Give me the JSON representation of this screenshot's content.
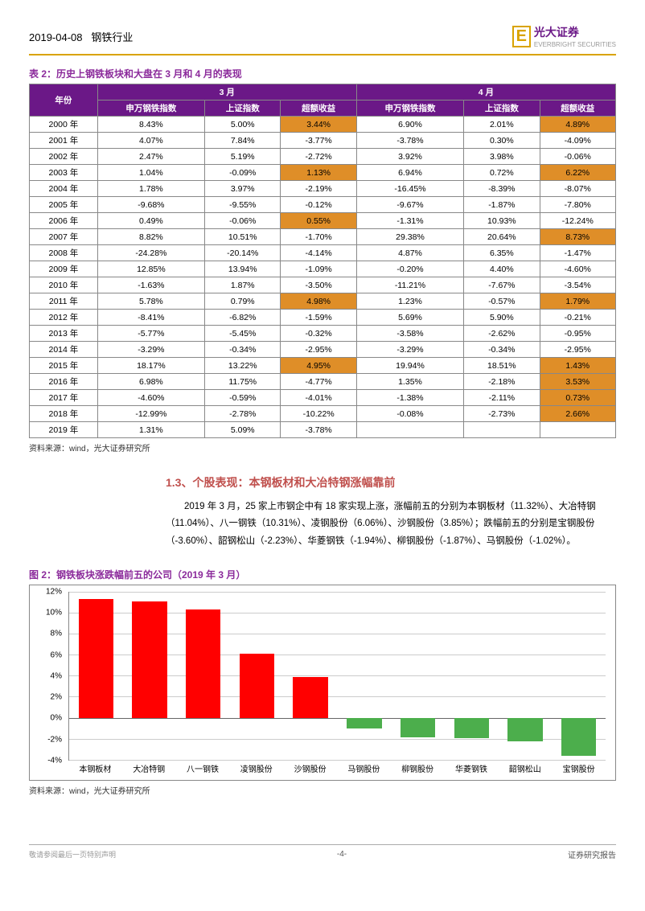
{
  "header": {
    "date": "2019-04-08",
    "industry": "钢铁行业",
    "brand_cn": "光大证券",
    "brand_en": "EVERBRIGHT SECURITIES"
  },
  "table": {
    "caption": "表 2：历史上钢铁板块和大盘在 3 月和 4 月的表现",
    "year_header": "年份",
    "month_a": "3 月",
    "month_b": "4 月",
    "sub_headers": [
      "申万钢铁指数",
      "上证指数",
      "超额收益",
      "申万钢铁指数",
      "上证指数",
      "超额收益"
    ],
    "rows": [
      {
        "y": "2000 年",
        "c": [
          "8.43%",
          "5.00%",
          "3.44%",
          "6.90%",
          "2.01%",
          "4.89%"
        ],
        "hl": [
          2,
          5
        ]
      },
      {
        "y": "2001 年",
        "c": [
          "4.07%",
          "7.84%",
          "-3.77%",
          "-3.78%",
          "0.30%",
          "-4.09%"
        ],
        "hl": []
      },
      {
        "y": "2002 年",
        "c": [
          "2.47%",
          "5.19%",
          "-2.72%",
          "3.92%",
          "3.98%",
          "-0.06%"
        ],
        "hl": []
      },
      {
        "y": "2003 年",
        "c": [
          "1.04%",
          "-0.09%",
          "1.13%",
          "6.94%",
          "0.72%",
          "6.22%"
        ],
        "hl": [
          2,
          5
        ]
      },
      {
        "y": "2004 年",
        "c": [
          "1.78%",
          "3.97%",
          "-2.19%",
          "-16.45%",
          "-8.39%",
          "-8.07%"
        ],
        "hl": []
      },
      {
        "y": "2005 年",
        "c": [
          "-9.68%",
          "-9.55%",
          "-0.12%",
          "-9.67%",
          "-1.87%",
          "-7.80%"
        ],
        "hl": []
      },
      {
        "y": "2006 年",
        "c": [
          "0.49%",
          "-0.06%",
          "0.55%",
          "-1.31%",
          "10.93%",
          "-12.24%"
        ],
        "hl": [
          2
        ]
      },
      {
        "y": "2007 年",
        "c": [
          "8.82%",
          "10.51%",
          "-1.70%",
          "29.38%",
          "20.64%",
          "8.73%"
        ],
        "hl": [
          5
        ]
      },
      {
        "y": "2008 年",
        "c": [
          "-24.28%",
          "-20.14%",
          "-4.14%",
          "4.87%",
          "6.35%",
          "-1.47%"
        ],
        "hl": []
      },
      {
        "y": "2009 年",
        "c": [
          "12.85%",
          "13.94%",
          "-1.09%",
          "-0.20%",
          "4.40%",
          "-4.60%"
        ],
        "hl": []
      },
      {
        "y": "2010 年",
        "c": [
          "-1.63%",
          "1.87%",
          "-3.50%",
          "-11.21%",
          "-7.67%",
          "-3.54%"
        ],
        "hl": []
      },
      {
        "y": "2011 年",
        "c": [
          "5.78%",
          "0.79%",
          "4.98%",
          "1.23%",
          "-0.57%",
          "1.79%"
        ],
        "hl": [
          2,
          5
        ]
      },
      {
        "y": "2012 年",
        "c": [
          "-8.41%",
          "-6.82%",
          "-1.59%",
          "5.69%",
          "5.90%",
          "-0.21%"
        ],
        "hl": []
      },
      {
        "y": "2013 年",
        "c": [
          "-5.77%",
          "-5.45%",
          "-0.32%",
          "-3.58%",
          "-2.62%",
          "-0.95%"
        ],
        "hl": []
      },
      {
        "y": "2014 年",
        "c": [
          "-3.29%",
          "-0.34%",
          "-2.95%",
          "-3.29%",
          "-0.34%",
          "-2.95%"
        ],
        "hl": []
      },
      {
        "y": "2015 年",
        "c": [
          "18.17%",
          "13.22%",
          "4.95%",
          "19.94%",
          "18.51%",
          "1.43%"
        ],
        "hl": [
          2,
          5
        ]
      },
      {
        "y": "2016 年",
        "c": [
          "6.98%",
          "11.75%",
          "-4.77%",
          "1.35%",
          "-2.18%",
          "3.53%"
        ],
        "hl": [
          5
        ]
      },
      {
        "y": "2017 年",
        "c": [
          "-4.60%",
          "-0.59%",
          "-4.01%",
          "-1.38%",
          "-2.11%",
          "0.73%"
        ],
        "hl": [
          5
        ]
      },
      {
        "y": "2018 年",
        "c": [
          "-12.99%",
          "-2.78%",
          "-10.22%",
          "-0.08%",
          "-2.73%",
          "2.66%"
        ],
        "hl": [
          5
        ]
      },
      {
        "y": "2019 年",
        "c": [
          "1.31%",
          "5.09%",
          "-3.78%",
          "",
          "",
          ""
        ],
        "hl": []
      }
    ],
    "source": "资料来源：wind，光大证券研究所"
  },
  "section": {
    "title": "1.3、个股表现：本钢板材和大冶特钢涨幅靠前",
    "body": "2019 年 3 月，25 家上市钢企中有 18 家实现上涨，涨幅前五的分别为本钢板材（11.32%）、大冶特钢（11.04%）、八一钢铁（10.31%）、凌钢股份（6.06%）、沙钢股份（3.85%）；跌幅前五的分别是宝钢股份（-3.60%）、韶钢松山（-2.23%）、华菱钢铁（-1.94%）、柳钢股份（-1.87%）、马钢股份（-1.02%）。"
  },
  "chart": {
    "caption": "图 2：钢铁板块涨跌幅前五的公司（2019 年 3 月）",
    "ylim_min": -4,
    "ylim_max": 12,
    "ystep": 2,
    "pos_color": "#ff0000",
    "neg_color": "#4cae4c",
    "grid_color": "#cccccc",
    "bars": [
      {
        "name": "本钢板材",
        "v": 11.32
      },
      {
        "name": "大冶特钢",
        "v": 11.04
      },
      {
        "name": "八一钢铁",
        "v": 10.31
      },
      {
        "name": "凌钢股份",
        "v": 6.06
      },
      {
        "name": "沙钢股份",
        "v": 3.85
      },
      {
        "name": "马钢股份",
        "v": -1.02
      },
      {
        "name": "柳钢股份",
        "v": -1.87
      },
      {
        "name": "华菱钢铁",
        "v": -1.94
      },
      {
        "name": "韶钢松山",
        "v": -2.23
      },
      {
        "name": "宝钢股份",
        "v": -3.6
      }
    ],
    "source": "资料来源：wind，光大证券研究所"
  },
  "footer": {
    "left": "敬请参阅最后一页特别声明",
    "page": "-4-",
    "right": "证券研究报告"
  }
}
